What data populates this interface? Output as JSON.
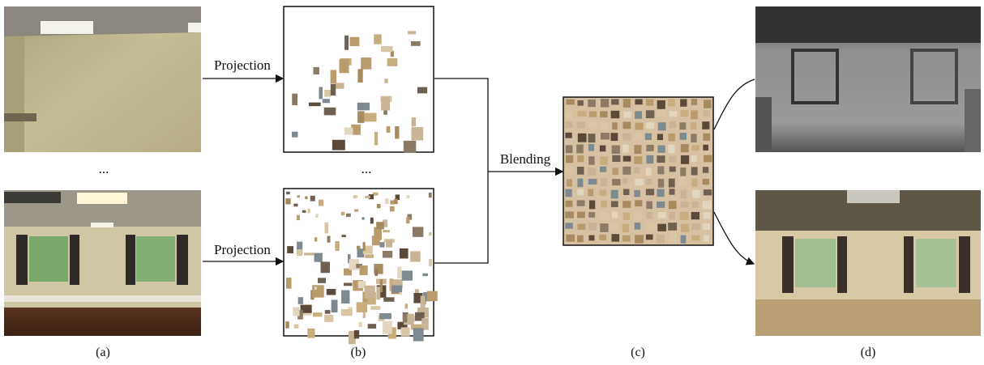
{
  "operations": {
    "projection": [
      "Projection",
      "Projection"
    ],
    "blending": "Blending"
  },
  "ellipses": [
    "...",
    "..."
  ],
  "captions": [
    "(a)",
    "(b)",
    "(c)",
    "(d)"
  ]
}
